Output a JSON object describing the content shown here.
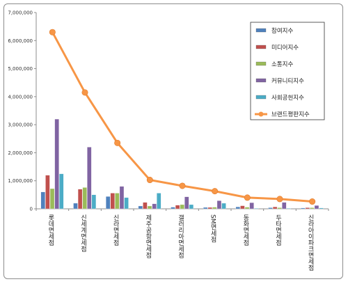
{
  "chart_data": {
    "type": "bar",
    "categories": [
      "롯데면세점",
      "신세계면세점",
      "신라면세점",
      "제주공항면세점",
      "갤러리아면세점",
      "SM면세점",
      "동화면세점",
      "두타면세점",
      "신라아이파크면세점"
    ],
    "yticks": [
      "0",
      "1,000,000",
      "2,000,000",
      "3,000,000",
      "4,000,000",
      "5,000,000",
      "6,000,000",
      "7,000,000"
    ],
    "ylim": [
      0,
      7000000
    ],
    "series": [
      {
        "name": "참여지수",
        "kind": "bar",
        "color": "#4f81bd",
        "values": [
          600000,
          200000,
          440000,
          100000,
          60000,
          50000,
          70000,
          40000,
          30000
        ]
      },
      {
        "name": "미디어지수",
        "kind": "bar",
        "color": "#c0504d",
        "values": [
          1200000,
          700000,
          560000,
          230000,
          130000,
          50000,
          110000,
          70000,
          40000
        ]
      },
      {
        "name": "소통지수",
        "kind": "bar",
        "color": "#9bbb59",
        "values": [
          720000,
          760000,
          560000,
          100000,
          150000,
          60000,
          60000,
          40000,
          40000
        ]
      },
      {
        "name": "커뮤니티지수",
        "kind": "bar",
        "color": "#8064a2",
        "values": [
          3200000,
          2200000,
          800000,
          180000,
          430000,
          290000,
          220000,
          230000,
          120000
        ]
      },
      {
        "name": "사회공헌지수",
        "kind": "bar",
        "color": "#4bacc6",
        "values": [
          1250000,
          500000,
          400000,
          560000,
          150000,
          200000,
          20000,
          20000,
          30000
        ]
      },
      {
        "name": "브랜드평판지수",
        "kind": "line",
        "color": "#f79646",
        "values": [
          6300000,
          4150000,
          2350000,
          1030000,
          820000,
          630000,
          400000,
          350000,
          260000
        ]
      }
    ],
    "grid": false,
    "legend_position": "right"
  }
}
